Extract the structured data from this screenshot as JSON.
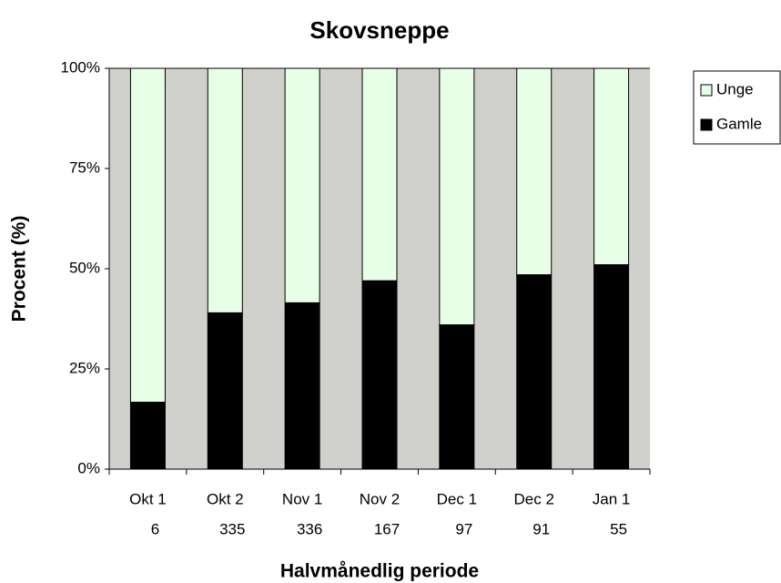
{
  "chart_data": {
    "type": "stacked_bar_percent",
    "title": "Skovsneppe",
    "x_label": "Halvmånedlig periode",
    "y_label": "Procent (%)",
    "categories": [
      "Okt 1",
      "Okt 2",
      "Nov 1",
      "Nov 2",
      "Dec 1",
      "Dec 2",
      "Jan 1"
    ],
    "sample_sizes": [
      6,
      335,
      336,
      167,
      97,
      91,
      55
    ],
    "series": [
      {
        "name": "Unge",
        "color": "#e6ffe6",
        "values": [
          83.3,
          61,
          58.5,
          53,
          64,
          51.5,
          49
        ]
      },
      {
        "name": "Gamle",
        "color": "#000000",
        "values": [
          16.7,
          39,
          41.5,
          47,
          36,
          48.5,
          51
        ]
      }
    ],
    "ylim": [
      0,
      100
    ],
    "yticks": [
      {
        "value": 0,
        "label": "0%"
      },
      {
        "value": 25,
        "label": "25%"
      },
      {
        "value": 50,
        "label": "50%"
      },
      {
        "value": 75,
        "label": "75%"
      },
      {
        "value": 100,
        "label": "100%"
      }
    ],
    "plot_background": "#d0d0cc",
    "legend": "right"
  }
}
